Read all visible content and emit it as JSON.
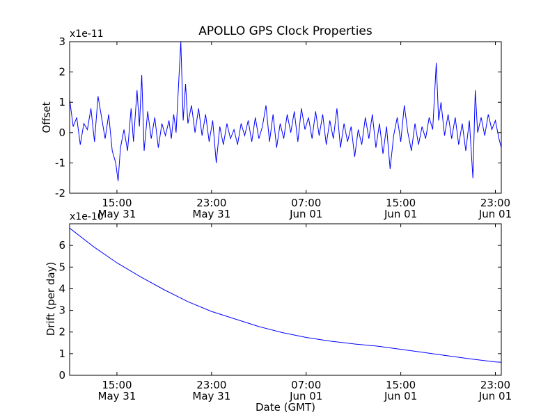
{
  "chart_data": [
    {
      "type": "line",
      "title": "APOLLO GPS Clock Properties",
      "ylabel": "Offset",
      "xlabel": "",
      "scale_label": "x1e-11",
      "series_color": "#0000ff",
      "x_unit": "hours since 11:00 GMT May 31",
      "xlim": [
        0,
        36.5
      ],
      "ylim": [
        -2,
        3
      ],
      "yticks": [
        -2,
        -1,
        0,
        1,
        2,
        3
      ],
      "ytick_labels": [
        "-2",
        "-1",
        "0",
        "1",
        "2",
        "3"
      ],
      "xticks": [
        4,
        12,
        20,
        28,
        36
      ],
      "xtick_labels": [
        {
          "time": "15:00",
          "date": "May 31"
        },
        {
          "time": "23:00",
          "date": "May 31"
        },
        {
          "time": "07:00",
          "date": "Jun 01"
        },
        {
          "time": "15:00",
          "date": "Jun 01"
        },
        {
          "time": "23:00",
          "date": "Jun 01"
        }
      ],
      "series": [
        {
          "name": "Offset",
          "points": [
            [
              0.0,
              1.1
            ],
            [
              0.3,
              0.2
            ],
            [
              0.6,
              0.5
            ],
            [
              0.9,
              -0.4
            ],
            [
              1.2,
              0.3
            ],
            [
              1.5,
              0.1
            ],
            [
              1.8,
              0.8
            ],
            [
              2.1,
              -0.3
            ],
            [
              2.4,
              1.2
            ],
            [
              2.7,
              0.5
            ],
            [
              3.0,
              -0.2
            ],
            [
              3.3,
              0.6
            ],
            [
              3.6,
              -0.6
            ],
            [
              3.9,
              -1.0
            ],
            [
              4.1,
              -1.6
            ],
            [
              4.3,
              -0.5
            ],
            [
              4.6,
              0.1
            ],
            [
              4.9,
              -0.6
            ],
            [
              5.2,
              0.8
            ],
            [
              5.4,
              -0.3
            ],
            [
              5.7,
              1.4
            ],
            [
              5.9,
              0.2
            ],
            [
              6.1,
              1.9
            ],
            [
              6.3,
              -0.6
            ],
            [
              6.6,
              0.7
            ],
            [
              6.9,
              -0.2
            ],
            [
              7.2,
              0.5
            ],
            [
              7.5,
              -0.5
            ],
            [
              7.8,
              0.3
            ],
            [
              8.1,
              -0.1
            ],
            [
              8.4,
              0.4
            ],
            [
              8.6,
              -0.2
            ],
            [
              8.8,
              0.6
            ],
            [
              9.0,
              0.0
            ],
            [
              9.2,
              1.5
            ],
            [
              9.4,
              3.0
            ],
            [
              9.6,
              0.4
            ],
            [
              9.8,
              1.6
            ],
            [
              10.0,
              0.3
            ],
            [
              10.3,
              0.9
            ],
            [
              10.6,
              0.0
            ],
            [
              10.9,
              0.8
            ],
            [
              11.2,
              -0.1
            ],
            [
              11.5,
              0.6
            ],
            [
              11.8,
              -0.3
            ],
            [
              12.1,
              0.4
            ],
            [
              12.4,
              -1.0
            ],
            [
              12.7,
              0.2
            ],
            [
              13.0,
              -0.4
            ],
            [
              13.3,
              0.3
            ],
            [
              13.6,
              -0.2
            ],
            [
              13.9,
              0.1
            ],
            [
              14.2,
              -0.4
            ],
            [
              14.5,
              0.3
            ],
            [
              14.8,
              -0.1
            ],
            [
              15.1,
              0.4
            ],
            [
              15.4,
              -0.3
            ],
            [
              15.7,
              0.5
            ],
            [
              16.0,
              -0.2
            ],
            [
              16.3,
              0.2
            ],
            [
              16.6,
              0.9
            ],
            [
              16.9,
              -0.3
            ],
            [
              17.2,
              0.6
            ],
            [
              17.5,
              -0.5
            ],
            [
              17.8,
              0.3
            ],
            [
              18.1,
              -0.2
            ],
            [
              18.4,
              0.6
            ],
            [
              18.7,
              0.0
            ],
            [
              19.0,
              0.7
            ],
            [
              19.3,
              -0.3
            ],
            [
              19.6,
              0.8
            ],
            [
              19.9,
              0.1
            ],
            [
              20.2,
              0.5
            ],
            [
              20.5,
              -0.2
            ],
            [
              20.8,
              0.7
            ],
            [
              21.1,
              -0.1
            ],
            [
              21.4,
              0.6
            ],
            [
              21.7,
              -0.4
            ],
            [
              22.0,
              0.4
            ],
            [
              22.3,
              -0.2
            ],
            [
              22.6,
              0.8
            ],
            [
              22.9,
              -0.5
            ],
            [
              23.2,
              0.3
            ],
            [
              23.5,
              -0.3
            ],
            [
              23.8,
              0.2
            ],
            [
              24.1,
              -0.8
            ],
            [
              24.4,
              0.1
            ],
            [
              24.7,
              -0.4
            ],
            [
              25.0,
              0.5
            ],
            [
              25.3,
              -0.2
            ],
            [
              25.6,
              0.6
            ],
            [
              25.9,
              -0.5
            ],
            [
              26.2,
              0.3
            ],
            [
              26.5,
              -0.7
            ],
            [
              26.8,
              0.2
            ],
            [
              27.1,
              -1.2
            ],
            [
              27.4,
              -0.1
            ],
            [
              27.7,
              0.5
            ],
            [
              28.0,
              -0.3
            ],
            [
              28.3,
              0.9
            ],
            [
              28.6,
              0.0
            ],
            [
              28.9,
              -0.6
            ],
            [
              29.2,
              0.3
            ],
            [
              29.5,
              -0.4
            ],
            [
              29.8,
              0.2
            ],
            [
              30.1,
              -0.2
            ],
            [
              30.4,
              0.5
            ],
            [
              30.7,
              0.1
            ],
            [
              31.0,
              2.3
            ],
            [
              31.2,
              0.4
            ],
            [
              31.4,
              1.0
            ],
            [
              31.7,
              -0.1
            ],
            [
              32.0,
              0.6
            ],
            [
              32.3,
              -0.2
            ],
            [
              32.6,
              0.5
            ],
            [
              32.9,
              -0.4
            ],
            [
              33.2,
              0.3
            ],
            [
              33.5,
              -0.6
            ],
            [
              33.8,
              0.4
            ],
            [
              34.1,
              -1.5
            ],
            [
              34.3,
              1.4
            ],
            [
              34.5,
              0.0
            ],
            [
              34.8,
              0.5
            ],
            [
              35.1,
              -0.1
            ],
            [
              35.4,
              0.6
            ],
            [
              35.7,
              0.1
            ],
            [
              36.0,
              0.4
            ],
            [
              36.3,
              -0.2
            ],
            [
              36.5,
              -0.5
            ]
          ]
        }
      ]
    },
    {
      "type": "line",
      "ylabel": "Drift (per day)",
      "xlabel": "Date (GMT)",
      "scale_label": "x1e-10",
      "series_color": "#0000ff",
      "x_unit": "hours since 11:00 GMT May 31",
      "xlim": [
        0,
        36.5
      ],
      "ylim": [
        0,
        7
      ],
      "yticks": [
        0,
        1,
        2,
        3,
        4,
        5,
        6
      ],
      "ytick_labels": [
        "0",
        "1",
        "2",
        "3",
        "4",
        "5",
        "6"
      ],
      "xticks": [
        4,
        12,
        20,
        28,
        36
      ],
      "xtick_labels": [
        {
          "time": "15:00",
          "date": "May 31"
        },
        {
          "time": "23:00",
          "date": "May 31"
        },
        {
          "time": "07:00",
          "date": "Jun 01"
        },
        {
          "time": "15:00",
          "date": "Jun 01"
        },
        {
          "time": "23:00",
          "date": "Jun 01"
        }
      ],
      "series": [
        {
          "name": "Drift",
          "points": [
            [
              0,
              6.8
            ],
            [
              2,
              5.95
            ],
            [
              4,
              5.2
            ],
            [
              6,
              4.55
            ],
            [
              8,
              3.95
            ],
            [
              10,
              3.4
            ],
            [
              12,
              2.95
            ],
            [
              14,
              2.6
            ],
            [
              16,
              2.25
            ],
            [
              18,
              1.97
            ],
            [
              20,
              1.75
            ],
            [
              22,
              1.58
            ],
            [
              24,
              1.45
            ],
            [
              26,
              1.35
            ],
            [
              28,
              1.2
            ],
            [
              30,
              1.05
            ],
            [
              32,
              0.9
            ],
            [
              34,
              0.75
            ],
            [
              36,
              0.62
            ],
            [
              36.5,
              0.6
            ]
          ]
        }
      ]
    }
  ]
}
